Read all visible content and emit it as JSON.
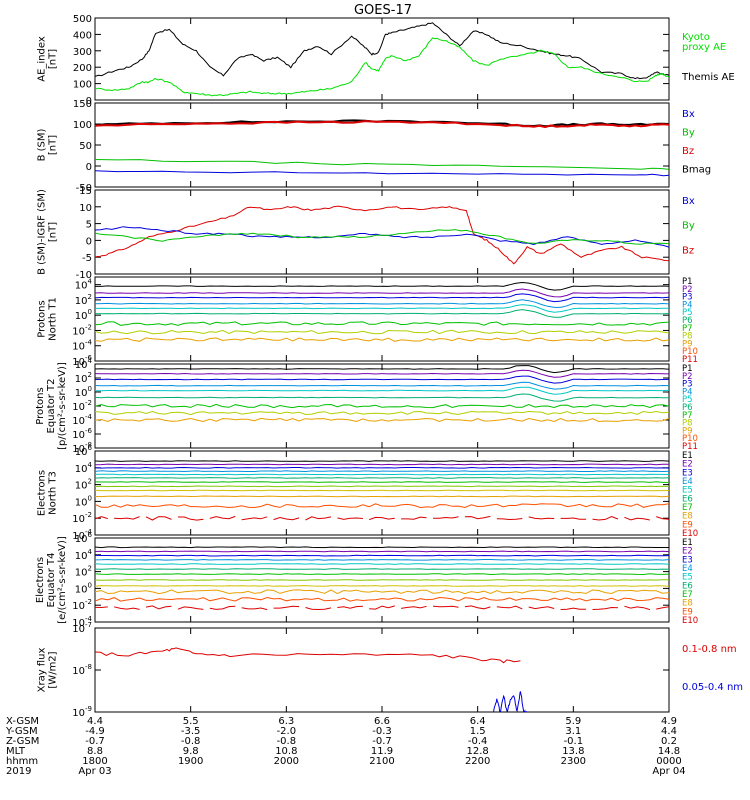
{
  "title": "GOES-17",
  "panels": [
    {
      "id": "ae",
      "ylabel": [
        "AE_index",
        "[nT]"
      ],
      "scale": "linear",
      "ylim": [
        0,
        500
      ],
      "yticks": [
        0,
        100,
        200,
        300,
        400,
        500
      ],
      "legend": [
        {
          "text": "Kyoto",
          "color": "#00e000"
        },
        {
          "text": "proxy AE",
          "color": "#00e000"
        },
        {
          "text": "Themis AE",
          "color": "#000000"
        }
      ],
      "series": [
        {
          "color": "#000000",
          "x": [
            0,
            0.3,
            0.5,
            0.7,
            0.8,
            0.9,
            1.1,
            1.3,
            1.5,
            1.7,
            1.9,
            2.1,
            2.3,
            2.5,
            2.7,
            2.9,
            3.1,
            3.3,
            3.5,
            3.8,
            4.0,
            4.1,
            4.2,
            4.3,
            4.4,
            4.6,
            4.8,
            5.0,
            5.2,
            5.4,
            5.6,
            5.8,
            6.0,
            6.3,
            6.6,
            6.8,
            7.0,
            7.2,
            7.5,
            7.8,
            8.0,
            8.2,
            8.3,
            8.4,
            8.5
          ],
          "y": [
            140,
            180,
            200,
            250,
            300,
            410,
            430,
            340,
            300,
            200,
            150,
            250,
            280,
            240,
            260,
            200,
            300,
            330,
            280,
            390,
            320,
            280,
            290,
            400,
            410,
            430,
            450,
            470,
            400,
            330,
            420,
            400,
            350,
            330,
            300,
            280,
            270,
            250,
            170,
            160,
            130,
            140,
            170,
            160,
            150
          ]
        },
        {
          "color": "#00e000",
          "x": [
            0,
            0.3,
            0.5,
            0.7,
            0.8,
            0.9,
            1.1,
            1.3,
            1.5,
            1.7,
            1.9,
            2.1,
            2.3,
            2.5,
            2.7,
            2.9,
            3.1,
            3.3,
            3.5,
            3.8,
            4.0,
            4.1,
            4.2,
            4.3,
            4.4,
            4.6,
            4.8,
            5.0,
            5.2,
            5.4,
            5.6,
            5.8,
            6.0,
            6.3,
            6.6,
            6.8,
            7.0,
            7.2,
            7.5,
            7.8,
            8.0,
            8.2,
            8.3,
            8.4,
            8.5
          ],
          "y": [
            70,
            60,
            70,
            110,
            110,
            130,
            110,
            50,
            40,
            30,
            30,
            40,
            50,
            40,
            40,
            40,
            50,
            60,
            70,
            110,
            230,
            190,
            180,
            250,
            270,
            240,
            270,
            380,
            360,
            320,
            240,
            210,
            250,
            270,
            300,
            280,
            200,
            200,
            160,
            140,
            110,
            120,
            150,
            160,
            140
          ]
        }
      ]
    },
    {
      "id": "b",
      "ylabel": [
        "B (SM)",
        "[nT]"
      ],
      "scale": "linear",
      "ylim": [
        -50,
        150
      ],
      "yticks": [
        -50,
        0,
        50,
        100,
        150
      ],
      "legend": [
        {
          "text": "Bx",
          "color": "#0000dd"
        },
        {
          "text": "By",
          "color": "#00c000"
        },
        {
          "text": "Bz",
          "color": "#dd0000"
        },
        {
          "text": "Bmag",
          "color": "#000000"
        }
      ],
      "series": [
        {
          "color": "#000000",
          "x": [
            0,
            1,
            2,
            3,
            4,
            5,
            6,
            6.5,
            7,
            7.5,
            8,
            8.5
          ],
          "y": [
            98,
            102,
            104,
            106,
            107,
            106,
            100,
            96,
            98,
            100,
            98,
            100
          ]
        },
        {
          "color": "#dd0000",
          "x": [
            0,
            1,
            2,
            3,
            4,
            5,
            6,
            6.5,
            7,
            7.5,
            8,
            8.5
          ],
          "y": [
            96,
            100,
            102,
            104,
            105,
            104,
            98,
            94,
            96,
            98,
            96,
            98
          ]
        },
        {
          "color": "#00c000",
          "x": [
            0,
            2,
            4,
            6,
            8,
            8.5
          ],
          "y": [
            15,
            10,
            4,
            0,
            -6,
            -8
          ]
        },
        {
          "color": "#0000dd",
          "x": [
            0,
            2,
            4,
            6,
            8,
            8.5
          ],
          "y": [
            -13,
            -15,
            -17,
            -19,
            -21,
            -22
          ]
        }
      ]
    },
    {
      "id": "db",
      "ylabel": [
        "B (SM)-IGRF (SM)",
        "[nT]"
      ],
      "scale": "linear",
      "ylim": [
        -10,
        15
      ],
      "yticks": [
        -10,
        -5,
        0,
        5,
        10,
        15
      ],
      "legend": [
        {
          "text": "Bx",
          "color": "#0000dd"
        },
        {
          "text": "By",
          "color": "#00c000"
        },
        {
          "text": "Bz",
          "color": "#dd0000"
        }
      ],
      "series": [
        {
          "color": "#dd0000",
          "x": [
            0,
            0.2,
            0.5,
            0.8,
            1.2,
            1.6,
            2.0,
            2.3,
            2.6,
            2.9,
            3.2,
            3.6,
            4.0,
            4.4,
            4.8,
            5.2,
            5.5,
            5.6,
            5.8,
            6.0,
            6.2,
            6.4,
            6.6,
            6.9,
            7.2,
            7.5,
            7.8,
            8.1,
            8.5
          ],
          "y": [
            -5,
            -4,
            -2,
            1,
            3,
            5,
            7,
            10,
            9,
            10,
            9,
            10,
            9,
            10,
            9,
            10,
            9,
            2,
            0,
            -3,
            -7,
            -2,
            -4,
            -1,
            -5,
            -3,
            -2,
            -5,
            -6
          ]
        },
        {
          "color": "#0000dd",
          "x": [
            0,
            0.5,
            1.0,
            1.5,
            2.0,
            2.5,
            3.0,
            3.5,
            4.0,
            4.5,
            5.0,
            5.5,
            6.0,
            6.5,
            7.0,
            7.5,
            8.0,
            8.5
          ],
          "y": [
            3,
            4,
            3,
            2,
            2,
            1,
            1,
            1,
            2,
            1,
            1,
            2,
            0,
            -1,
            1,
            -1,
            0,
            -2
          ]
        },
        {
          "color": "#00c000",
          "x": [
            0,
            0.5,
            1.0,
            1.5,
            2.0,
            2.5,
            3.0,
            3.5,
            4.0,
            4.5,
            5.0,
            5.5,
            6.0,
            6.5,
            7.0,
            7.5,
            8.0,
            8.5
          ],
          "y": [
            2,
            1,
            0,
            1,
            2,
            2,
            1,
            1,
            1,
            2,
            3,
            3,
            1,
            -1,
            0,
            0,
            -1,
            -1
          ]
        }
      ]
    },
    {
      "id": "pn",
      "ylabel": [
        "Protons",
        "North T1"
      ],
      "scale": "log",
      "ylim": [
        -6,
        5
      ],
      "yticks": [
        -6,
        -4,
        -2,
        0,
        2,
        4
      ],
      "legend": [
        {
          "text": "P1",
          "color": "#000000"
        },
        {
          "text": "P2",
          "color": "#7b00b0"
        },
        {
          "text": "P3",
          "color": "#0000dd"
        },
        {
          "text": "P4",
          "color": "#0090e0"
        },
        {
          "text": "P5",
          "color": "#00c8c8"
        },
        {
          "text": "P6",
          "color": "#00b070"
        },
        {
          "text": "P7",
          "color": "#00c000"
        },
        {
          "text": "P8",
          "color": "#b0d000"
        },
        {
          "text": "P9",
          "color": "#e8a000"
        },
        {
          "text": "P10",
          "color": "#ff5000"
        },
        {
          "text": "P11",
          "color": "#dd0000"
        }
      ],
      "levels": [
        3.8,
        2.9,
        2.3,
        1.5,
        0.9,
        0.2,
        -1.1,
        -2.2,
        -3.2
      ],
      "colors": [
        "#000000",
        "#7b00b0",
        "#0000dd",
        "#0090e0",
        "#00c8c8",
        "#00b070",
        "#00c000",
        "#b0d000",
        "#e8a000"
      ]
    },
    {
      "id": "pe",
      "ylabel": [
        "Protons",
        "Equator T2",
        "[p/(cm²-s-sr-keV)]"
      ],
      "scale": "log",
      "ylim": [
        -8,
        4
      ],
      "yticks": [
        -8,
        -6,
        -4,
        -2,
        0,
        2,
        4
      ],
      "legend": [
        {
          "text": "P1",
          "color": "#000000"
        },
        {
          "text": "P2",
          "color": "#7b00b0"
        },
        {
          "text": "P3",
          "color": "#0000dd"
        },
        {
          "text": "P4",
          "color": "#0090e0"
        },
        {
          "text": "P5",
          "color": "#00c8c8"
        },
        {
          "text": "P6",
          "color": "#00b070"
        },
        {
          "text": "P7",
          "color": "#00c000"
        },
        {
          "text": "P8",
          "color": "#b0d000"
        },
        {
          "text": "P9",
          "color": "#e8a000"
        },
        {
          "text": "P10",
          "color": "#ff5000"
        },
        {
          "text": "P11",
          "color": "#dd0000"
        }
      ],
      "levels": [
        3.3,
        2.6,
        1.8,
        0.9,
        0.2,
        -0.8,
        -2.0,
        -3.0,
        -4.0
      ],
      "colors": [
        "#000000",
        "#7b00b0",
        "#0000dd",
        "#0090e0",
        "#00c8c8",
        "#00b070",
        "#00c000",
        "#b0d000",
        "#e8a000"
      ]
    },
    {
      "id": "en",
      "ylabel": [
        "Electrons",
        "North T3"
      ],
      "scale": "log",
      "ylim": [
        -4,
        6
      ],
      "yticks": [
        -4,
        -2,
        0,
        2,
        4,
        6
      ],
      "legend": [
        {
          "text": "E1",
          "color": "#000000"
        },
        {
          "text": "E2",
          "color": "#7b00b0"
        },
        {
          "text": "E3",
          "color": "#0000dd"
        },
        {
          "text": "E4",
          "color": "#0090e0"
        },
        {
          "text": "E5",
          "color": "#00c8c8"
        },
        {
          "text": "E6",
          "color": "#00b070"
        },
        {
          "text": "E7",
          "color": "#00c000"
        },
        {
          "text": "E8",
          "color": "#e8a000"
        },
        {
          "text": "E9",
          "color": "#ff5000"
        },
        {
          "text": "E10",
          "color": "#dd0000"
        }
      ],
      "levels": [
        4.8,
        4.4,
        4.0,
        3.6,
        3.2,
        2.8,
        2.3,
        1.8,
        1.3,
        0.6,
        -0.5,
        -2.0
      ],
      "colors": [
        "#000000",
        "#7b00b0",
        "#0000dd",
        "#0090e0",
        "#00c8c8",
        "#00b070",
        "#00c000",
        "#80c800",
        "#d0c000",
        "#e8a000",
        "#ff5000",
        "#dd0000"
      ]
    },
    {
      "id": "ee",
      "ylabel": [
        "Electrons",
        "Equator T4",
        "[e/(cm²-s-sr-keV)]"
      ],
      "scale": "log",
      "ylim": [
        -4,
        6
      ],
      "yticks": [
        -4,
        -2,
        0,
        2,
        4,
        6
      ],
      "legend": [
        {
          "text": "E1",
          "color": "#000000"
        },
        {
          "text": "E2",
          "color": "#7b00b0"
        },
        {
          "text": "E3",
          "color": "#0000dd"
        },
        {
          "text": "E4",
          "color": "#0090e0"
        },
        {
          "text": "E5",
          "color": "#00c8c8"
        },
        {
          "text": "E6",
          "color": "#00b070"
        },
        {
          "text": "E7",
          "color": "#00c000"
        },
        {
          "text": "E8",
          "color": "#e8a000"
        },
        {
          "text": "E9",
          "color": "#ff5000"
        },
        {
          "text": "E10",
          "color": "#dd0000"
        }
      ],
      "levels": [
        4.9,
        4.4,
        3.9,
        3.4,
        2.9,
        2.3,
        1.7,
        1.0,
        0.3,
        -0.4,
        -1.3,
        -2.3
      ],
      "colors": [
        "#000000",
        "#7b00b0",
        "#0000dd",
        "#0090e0",
        "#00c8c8",
        "#00b070",
        "#00c000",
        "#80c800",
        "#d0c000",
        "#e8a000",
        "#ff5000",
        "#dd0000"
      ]
    },
    {
      "id": "xray",
      "ylabel": [
        "Xray flux",
        "[W/m2]"
      ],
      "scale": "log",
      "ylim": [
        -9,
        -7
      ],
      "yticks": [
        -9,
        -8,
        -7
      ],
      "legend": [
        {
          "text": "0.1-0.8 nm",
          "color": "#dd0000"
        },
        {
          "text": "0.05-0.4 nm",
          "color": "#0000dd"
        }
      ],
      "series": [
        {
          "color": "#dd0000",
          "x": [
            0,
            0.5,
            1.0,
            1.2,
            1.5,
            2.0,
            3.0,
            4.0,
            5.0,
            5.6,
            6.0,
            6.3
          ],
          "y": [
            -7.6,
            -7.65,
            -7.55,
            -7.5,
            -7.62,
            -7.65,
            -7.63,
            -7.64,
            -7.65,
            -7.72,
            -7.8,
            -7.78
          ]
        },
        {
          "color": "#0000dd",
          "x": [
            5.9,
            5.95,
            6.0,
            6.05,
            6.1,
            6.15,
            6.2,
            6.25,
            6.3,
            6.35,
            6.4
          ],
          "y": [
            -9,
            -8.7,
            -9,
            -8.6,
            -9,
            -8.7,
            -8.6,
            -9,
            -8.5,
            -9,
            -9
          ]
        }
      ]
    }
  ],
  "x_axis": {
    "row_labels": [
      "X-GSM",
      "Y-GSM",
      "Z-GSM",
      "MLT",
      "hhmm",
      "2019"
    ],
    "ticks": [
      {
        "x": 0,
        "vals": [
          "4.4",
          "-4.9",
          "-0.7",
          "8.8",
          "1800",
          "Apr 03"
        ]
      },
      {
        "x": 1,
        "vals": [
          "5.5",
          "-3.5",
          "-0.8",
          "9.8",
          "1900",
          ""
        ]
      },
      {
        "x": 2,
        "vals": [
          "6.3",
          "-2.0",
          "-0.8",
          "10.8",
          "2000",
          ""
        ]
      },
      {
        "x": 3,
        "vals": [
          "6.6",
          "-0.3",
          "-0.7",
          "11.9",
          "2100",
          ""
        ]
      },
      {
        "x": 4,
        "vals": [
          "6.4",
          "1.5",
          "-0.4",
          "12.8",
          "2200",
          ""
        ]
      },
      {
        "x": 5,
        "vals": [
          "5.9",
          "3.1",
          "-0.1",
          "13.8",
          "2300",
          ""
        ]
      },
      {
        "x": 6,
        "vals": [
          "4.9",
          "4.4",
          "0.2",
          "14.8",
          "0000",
          "Apr 04"
        ]
      }
    ]
  },
  "chart_data": [
    {
      "type": "line",
      "title": "GOES-17",
      "ylabel": "AE_index [nT]",
      "ylim": [
        0,
        500
      ],
      "series": [
        {
          "name": "Themis AE"
        },
        {
          "name": "Kyoto proxy AE"
        }
      ]
    },
    {
      "type": "line",
      "ylabel": "B (SM) [nT]",
      "ylim": [
        -50,
        150
      ],
      "series": [
        {
          "name": "Bx"
        },
        {
          "name": "By"
        },
        {
          "name": "Bz"
        },
        {
          "name": "Bmag"
        }
      ]
    },
    {
      "type": "line",
      "ylabel": "B (SM)-IGRF (SM) [nT]",
      "ylim": [
        -10,
        15
      ],
      "series": [
        {
          "name": "Bx"
        },
        {
          "name": "By"
        },
        {
          "name": "Bz"
        }
      ]
    },
    {
      "type": "line",
      "ylabel": "Protons North T1",
      "ylim": [
        1e-06,
        100000.0
      ]
    },
    {
      "type": "line",
      "ylabel": "Protons Equator T2 [p/(cm²-s-sr-keV)]",
      "ylim": [
        1e-08,
        10000.0
      ]
    },
    {
      "type": "line",
      "ylabel": "Electrons North T3",
      "ylim": [
        0.0001,
        1000000.0
      ]
    },
    {
      "type": "line",
      "ylabel": "Electrons Equator T4 [e/(cm²-s-sr-keV)]",
      "ylim": [
        0.0001,
        1000000.0
      ]
    },
    {
      "type": "line",
      "ylabel": "Xray flux [W/m2]",
      "ylim": [
        1e-09,
        1e-07
      ],
      "series": [
        {
          "name": "0.1-0.8 nm"
        },
        {
          "name": "0.05-0.4 nm"
        }
      ]
    }
  ]
}
